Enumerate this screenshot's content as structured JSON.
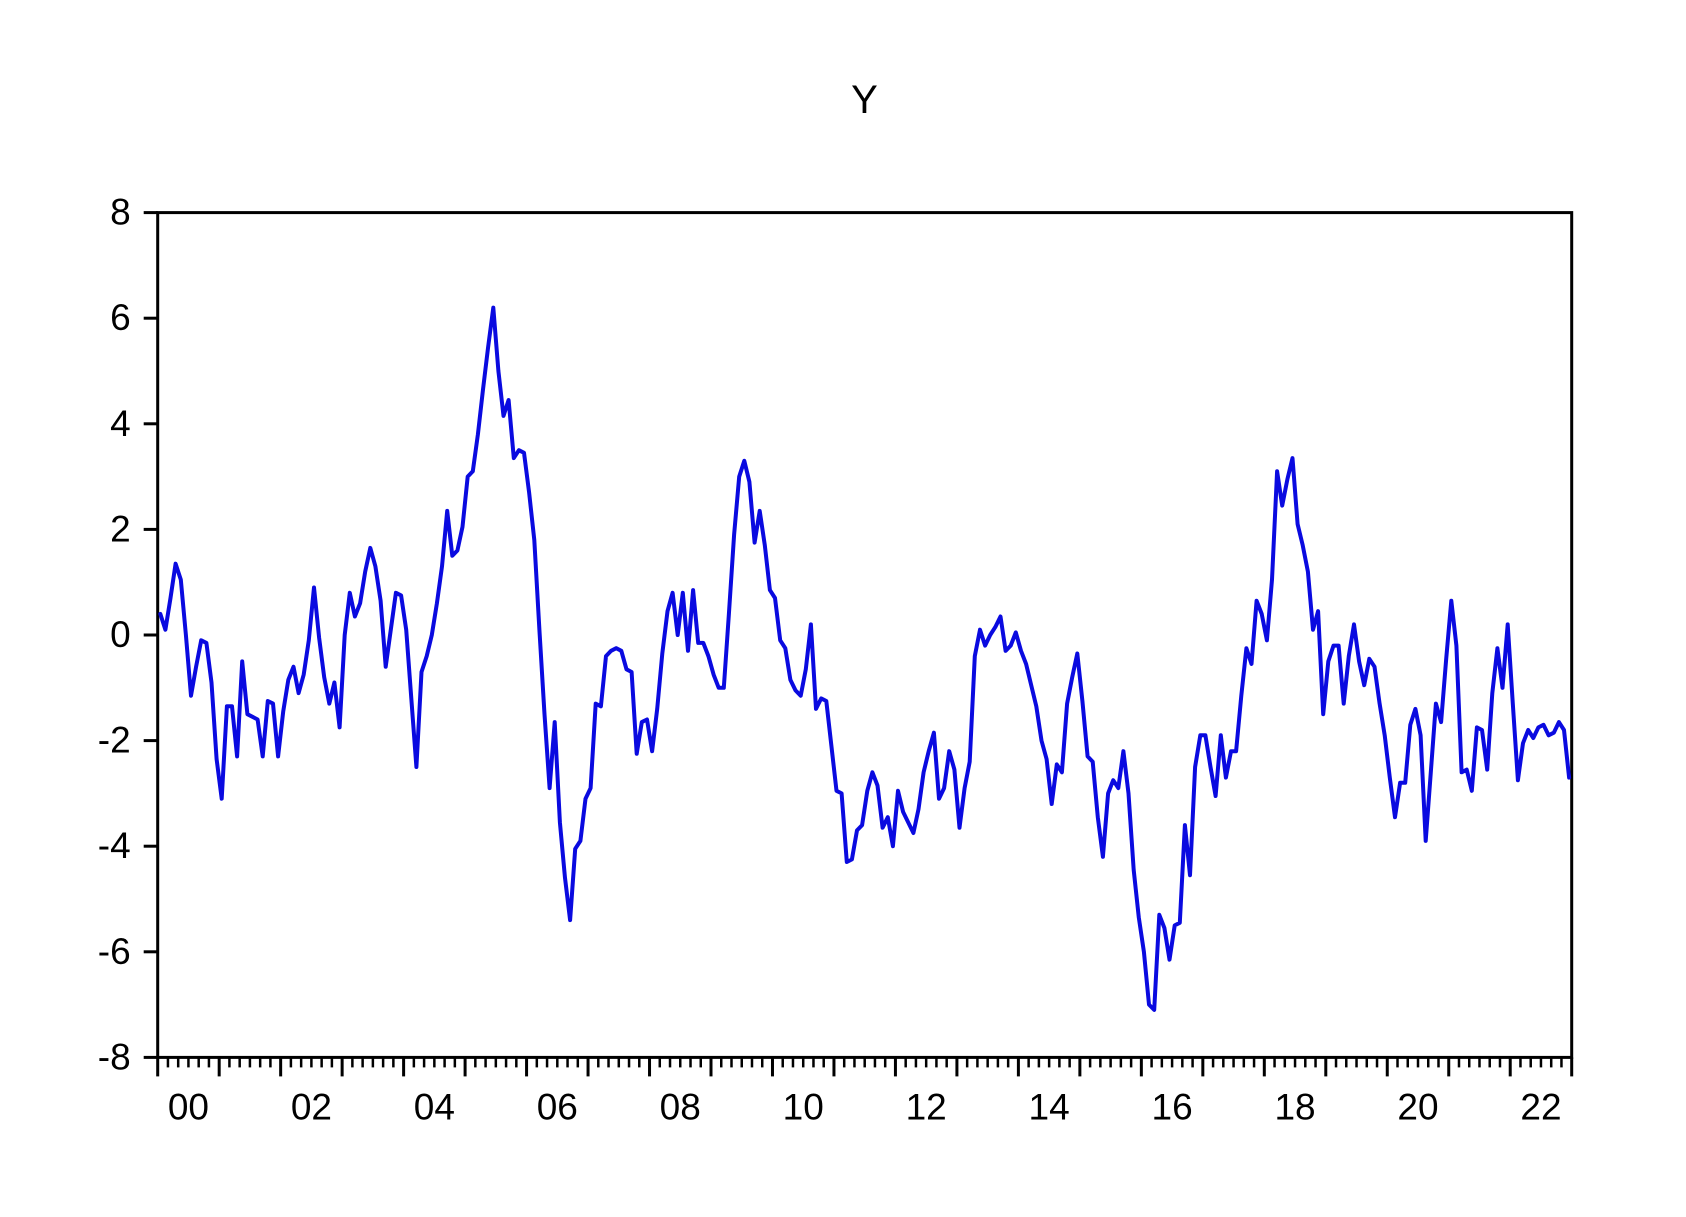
{
  "page": {
    "background": "#ffffff"
  },
  "chart_data": {
    "type": "line",
    "title": "Y",
    "series_name": "Y",
    "frequency": "monthly",
    "start_period": "2000M01",
    "end_period": "2022M12",
    "legend_position": "none",
    "grid": false,
    "line_color": "#0a0ae0",
    "axis_color": "#000000",
    "ylim": [
      -8,
      8
    ],
    "yticks": [
      8,
      6,
      4,
      2,
      0,
      -2,
      -4,
      -6,
      -8
    ],
    "x_years_start": 2000,
    "x_years_end": 2023,
    "x_tick_labels": [
      "00",
      "02",
      "04",
      "06",
      "08",
      "10",
      "12",
      "14",
      "16",
      "18",
      "20",
      "22"
    ],
    "values": [
      0.4,
      0.1,
      0.7,
      1.35,
      1.05,
      0.0,
      -1.15,
      -0.6,
      -0.1,
      -0.15,
      -0.9,
      -2.35,
      -3.1,
      -1.35,
      -1.35,
      -2.3,
      -0.5,
      -1.5,
      -1.55,
      -1.6,
      -2.3,
      -1.25,
      -1.3,
      -2.3,
      -1.45,
      -0.85,
      -0.6,
      -1.1,
      -0.75,
      -0.1,
      0.9,
      -0.05,
      -0.8,
      -1.3,
      -0.9,
      -1.75,
      0.0,
      0.8,
      0.35,
      0.6,
      1.2,
      1.65,
      1.3,
      0.65,
      -0.6,
      0.1,
      0.8,
      0.75,
      0.1,
      -1.2,
      -2.5,
      -0.7,
      -0.4,
      0.0,
      0.6,
      1.3,
      2.35,
      1.5,
      1.6,
      2.05,
      3.0,
      3.1,
      3.8,
      4.65,
      5.45,
      6.2,
      5.0,
      4.15,
      4.45,
      3.35,
      3.5,
      3.45,
      2.7,
      1.8,
      0.1,
      -1.5,
      -2.9,
      -1.65,
      -3.55,
      -4.6,
      -5.4,
      -4.05,
      -3.9,
      -3.1,
      -2.9,
      -1.3,
      -1.35,
      -0.4,
      -0.3,
      -0.25,
      -0.3,
      -0.65,
      -0.7,
      -2.25,
      -1.65,
      -1.6,
      -2.2,
      -1.4,
      -0.35,
      0.45,
      0.8,
      0.0,
      0.8,
      -0.3,
      0.85,
      -0.15,
      -0.15,
      -0.4,
      -0.75,
      -1.0,
      -1.0,
      0.4,
      1.9,
      3.0,
      3.3,
      2.9,
      1.75,
      2.35,
      1.7,
      0.85,
      0.7,
      -0.1,
      -0.25,
      -0.85,
      -1.05,
      -1.15,
      -0.65,
      0.2,
      -1.4,
      -1.2,
      -1.25,
      -2.1,
      -2.95,
      -3.0,
      -4.3,
      -4.25,
      -3.7,
      -3.6,
      -2.95,
      -2.6,
      -2.85,
      -3.65,
      -3.45,
      -4.0,
      -2.95,
      -3.35,
      -3.55,
      -3.75,
      -3.3,
      -2.6,
      -2.2,
      -1.85,
      -3.1,
      -2.9,
      -2.2,
      -2.55,
      -3.65,
      -2.9,
      -2.4,
      -0.4,
      0.1,
      -0.2,
      0.0,
      0.15,
      0.35,
      -0.3,
      -0.2,
      0.05,
      -0.3,
      -0.55,
      -0.95,
      -1.35,
      -2.0,
      -2.35,
      -3.2,
      -2.45,
      -2.6,
      -1.3,
      -0.8,
      -0.35,
      -1.25,
      -2.3,
      -2.4,
      -3.45,
      -4.2,
      -3.0,
      -2.75,
      -2.9,
      -2.2,
      -3.0,
      -4.45,
      -5.35,
      -6.0,
      -7.0,
      -7.1,
      -5.3,
      -5.55,
      -6.15,
      -5.5,
      -5.45,
      -3.6,
      -4.55,
      -2.5,
      -1.9,
      -1.9,
      -2.5,
      -3.05,
      -1.9,
      -2.7,
      -2.2,
      -2.2,
      -1.15,
      -0.25,
      -0.55,
      0.65,
      0.4,
      -0.1,
      1.05,
      3.1,
      2.45,
      2.95,
      3.35,
      2.1,
      1.7,
      1.2,
      0.1,
      0.45,
      -1.5,
      -0.5,
      -0.2,
      -0.2,
      -1.3,
      -0.4,
      0.2,
      -0.5,
      -0.95,
      -0.45,
      -0.6,
      -1.3,
      -1.9,
      -2.7,
      -3.45,
      -2.8,
      -2.8,
      -1.7,
      -1.4,
      -1.9,
      -3.9,
      -2.6,
      -1.3,
      -1.65,
      -0.45,
      0.65,
      -0.2,
      -2.6,
      -2.55,
      -2.95,
      -1.75,
      -1.8,
      -2.55,
      -1.1,
      -0.25,
      -1.0,
      0.2,
      -1.3,
      -2.75,
      -2.05,
      -1.8,
      -1.95,
      -1.75,
      -1.7,
      -1.9,
      -1.85,
      -1.65,
      -1.8,
      -2.7
    ]
  }
}
